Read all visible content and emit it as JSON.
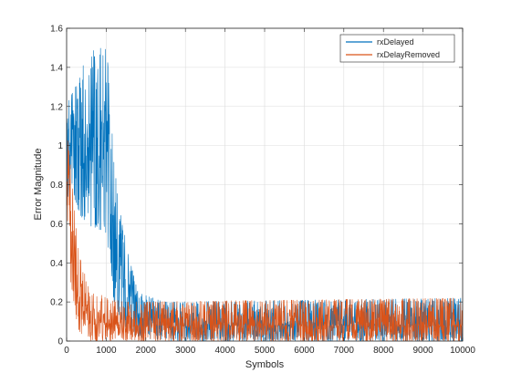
{
  "chart_data": {
    "type": "line",
    "title": "",
    "xlabel": "Symbols",
    "ylabel": "Error Magnitude",
    "xlim": [
      0,
      10000
    ],
    "ylim": [
      0,
      1.6
    ],
    "xticks": [
      0,
      1000,
      2000,
      3000,
      4000,
      5000,
      6000,
      7000,
      8000,
      9000,
      10000
    ],
    "yticks": [
      0,
      0.2,
      0.4,
      0.6,
      0.8,
      1,
      1.2,
      1.4,
      1.6
    ],
    "xtick_labels": [
      "0",
      "1000",
      "2000",
      "3000",
      "4000",
      "5000",
      "6000",
      "7000",
      "8000",
      "9000",
      "10000"
    ],
    "ytick_labels": [
      "0",
      "0.2",
      "0.4",
      "0.6",
      "0.8",
      "1",
      "1.2",
      "1.4",
      "1.6"
    ],
    "grid": true,
    "legend_position": "top-right",
    "series": [
      {
        "name": "rxDelayed",
        "color": "#0072BD",
        "description_profile": [
          {
            "x": 0,
            "center": 1.0,
            "low": 0.75,
            "high": 1.2
          },
          {
            "x": 500,
            "center": 1.05,
            "low": 0.6,
            "high": 1.45
          },
          {
            "x": 1000,
            "center": 0.95,
            "low": 0.55,
            "high": 1.55
          },
          {
            "x": 1200,
            "center": 0.65,
            "low": 0.2,
            "high": 0.9
          },
          {
            "x": 1500,
            "center": 0.3,
            "low": 0.05,
            "high": 0.5
          },
          {
            "x": 1800,
            "center": 0.12,
            "low": 0.02,
            "high": 0.25
          },
          {
            "x": 2500,
            "center": 0.08,
            "low": 0.0,
            "high": 0.2
          },
          {
            "x": 10000,
            "center": 0.08,
            "low": 0.0,
            "high": 0.22
          }
        ]
      },
      {
        "name": "rxDelayRemoved",
        "color": "#D95319",
        "description_profile": [
          {
            "x": 0,
            "center": 1.0,
            "low": 0.7,
            "high": 1.1
          },
          {
            "x": 100,
            "center": 0.6,
            "low": 0.3,
            "high": 0.9
          },
          {
            "x": 300,
            "center": 0.2,
            "low": 0.05,
            "high": 0.45
          },
          {
            "x": 600,
            "center": 0.1,
            "low": 0.0,
            "high": 0.25
          },
          {
            "x": 1500,
            "center": 0.08,
            "low": 0.0,
            "high": 0.2
          },
          {
            "x": 10000,
            "center": 0.08,
            "low": 0.0,
            "high": 0.22
          }
        ]
      }
    ]
  }
}
